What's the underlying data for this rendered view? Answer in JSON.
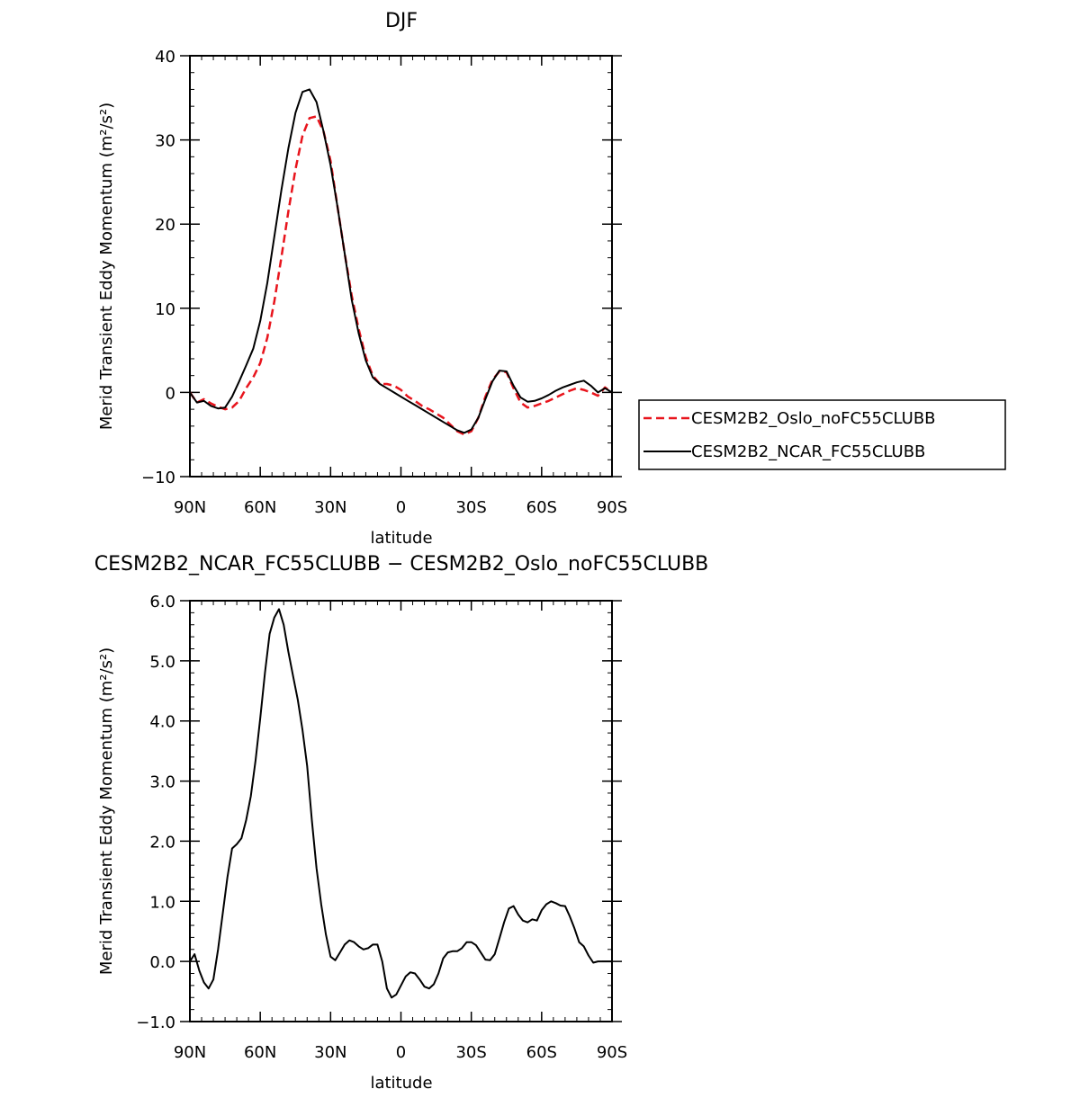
{
  "chart_data": [
    {
      "type": "line",
      "title": "DJF",
      "xlabel": "latitude",
      "ylabel": "Merid Transient Eddy Momentum (m²/s²)",
      "xlim": [
        90,
        -90
      ],
      "ylim": [
        -10,
        40
      ],
      "x_ticks": [
        {
          "value": 90,
          "label": "90N"
        },
        {
          "value": 60,
          "label": "60N"
        },
        {
          "value": 30,
          "label": "30N"
        },
        {
          "value": 0,
          "label": "0"
        },
        {
          "value": -30,
          "label": "30S"
        },
        {
          "value": -60,
          "label": "60S"
        },
        {
          "value": -90,
          "label": "90S"
        }
      ],
      "y_ticks": [
        {
          "value": -10,
          "label": "−10"
        },
        {
          "value": 0,
          "label": "0"
        },
        {
          "value": 10,
          "label": "10"
        },
        {
          "value": 20,
          "label": "20"
        },
        {
          "value": 30,
          "label": "30"
        },
        {
          "value": 40,
          "label": "40"
        }
      ],
      "legend_position": "right",
      "series": [
        {
          "name": "CESM2B2_Oslo_noFC55CLUBB",
          "color": "#e8141c",
          "dash": "dashed",
          "x": [
            90,
            87,
            84,
            81,
            78,
            75,
            72,
            69,
            66,
            63,
            60,
            57,
            54,
            51,
            48,
            45,
            42,
            39,
            36,
            33,
            30,
            27,
            24,
            21,
            18,
            15,
            12,
            9,
            6,
            3,
            0,
            -3,
            -6,
            -9,
            -12,
            -15,
            -18,
            -21,
            -24,
            -27,
            -30,
            -33,
            -36,
            -39,
            -42,
            -45,
            -48,
            -51,
            -54,
            -57,
            -60,
            -63,
            -66,
            -69,
            -72,
            -75,
            -78,
            -81,
            -84,
            -87,
            -90
          ],
          "y": [
            0.0,
            -1.2,
            -0.8,
            -1.3,
            -1.7,
            -2.0,
            -1.8,
            -1.0,
            0.5,
            1.8,
            3.5,
            6.5,
            10.8,
            16.0,
            21.5,
            26.5,
            30.5,
            32.6,
            32.8,
            31.0,
            27.5,
            22.0,
            16.5,
            11.5,
            7.5,
            4.2,
            2.0,
            1.0,
            1.0,
            0.8,
            0.3,
            -0.5,
            -1.0,
            -1.6,
            -2.0,
            -2.5,
            -3.0,
            -3.8,
            -4.6,
            -5.0,
            -4.6,
            -3.0,
            -0.5,
            1.5,
            2.5,
            2.4,
            0.5,
            -1.2,
            -1.8,
            -1.6,
            -1.3,
            -1.0,
            -0.6,
            -0.2,
            0.2,
            0.5,
            0.3,
            0.0,
            -0.4,
            0.6,
            0.0
          ]
        },
        {
          "name": "CESM2B2_NCAR_FC55CLUBB",
          "color": "#000000",
          "dash": "solid",
          "x": [
            90,
            87,
            84,
            81,
            78,
            75,
            72,
            69,
            66,
            63,
            60,
            57,
            54,
            51,
            48,
            45,
            42,
            39,
            36,
            33,
            30,
            27,
            24,
            21,
            18,
            15,
            12,
            9,
            6,
            3,
            0,
            -3,
            -6,
            -9,
            -12,
            -15,
            -18,
            -21,
            -24,
            -27,
            -30,
            -33,
            -36,
            -39,
            -42,
            -45,
            -48,
            -51,
            -54,
            -57,
            -60,
            -63,
            -66,
            -69,
            -72,
            -75,
            -78,
            -81,
            -84,
            -87,
            -90
          ],
          "y": [
            0.0,
            -1.2,
            -1.0,
            -1.6,
            -1.9,
            -1.8,
            -0.5,
            1.3,
            3.2,
            5.2,
            8.5,
            13.0,
            18.5,
            24.0,
            29.0,
            33.2,
            35.7,
            36.0,
            34.5,
            31.0,
            27.0,
            22.0,
            16.5,
            11.0,
            7.0,
            3.8,
            1.8,
            1.0,
            0.5,
            0.0,
            -0.5,
            -1.0,
            -1.5,
            -2.0,
            -2.5,
            -3.0,
            -3.5,
            -4.0,
            -4.5,
            -4.8,
            -4.4,
            -3.0,
            -0.8,
            1.3,
            2.6,
            2.5,
            0.8,
            -0.6,
            -1.1,
            -1.0,
            -0.7,
            -0.3,
            0.2,
            0.6,
            0.9,
            1.2,
            1.4,
            0.8,
            0.0,
            0.5,
            0.0
          ]
        }
      ]
    },
    {
      "type": "line",
      "title": "CESM2B2_NCAR_FC55CLUBB − CESM2B2_Oslo_noFC55CLUBB",
      "xlabel": "latitude",
      "ylabel": "Merid Transient Eddy Momentum (m²/s²)",
      "xlim": [
        90,
        -90
      ],
      "ylim": [
        -1.0,
        6.0
      ],
      "x_ticks": [
        {
          "value": 90,
          "label": "90N"
        },
        {
          "value": 60,
          "label": "60N"
        },
        {
          "value": 30,
          "label": "30N"
        },
        {
          "value": 0,
          "label": "0"
        },
        {
          "value": -30,
          "label": "30S"
        },
        {
          "value": -60,
          "label": "60S"
        },
        {
          "value": -90,
          "label": "90S"
        }
      ],
      "y_ticks": [
        {
          "value": -1.0,
          "label": "−1.0"
        },
        {
          "value": 0.0,
          "label": "0.0"
        },
        {
          "value": 1.0,
          "label": "1.0"
        },
        {
          "value": 2.0,
          "label": "2.0"
        },
        {
          "value": 3.0,
          "label": "3.0"
        },
        {
          "value": 4.0,
          "label": "4.0"
        },
        {
          "value": 5.0,
          "label": "5.0"
        },
        {
          "value": 6.0,
          "label": "6.0"
        }
      ],
      "series": [
        {
          "color": "#000000",
          "dash": "solid",
          "x": [
            90,
            88,
            86,
            84,
            82,
            80,
            78,
            76,
            74,
            72,
            70,
            68,
            66,
            64,
            62,
            60,
            58,
            56,
            54,
            52,
            50,
            48,
            46,
            44,
            42,
            40,
            38,
            36,
            34,
            32,
            30,
            28,
            26,
            24,
            22,
            20,
            18,
            16,
            14,
            12,
            10,
            8,
            6,
            4,
            2,
            0,
            -2,
            -4,
            -6,
            -8,
            -10,
            -12,
            -14,
            -16,
            -18,
            -20,
            -22,
            -24,
            -26,
            -28,
            -30,
            -32,
            -34,
            -36,
            -38,
            -40,
            -42,
            -44,
            -46,
            -48,
            -50,
            -52,
            -54,
            -56,
            -58,
            -60,
            -62,
            -64,
            -66,
            -68,
            -70,
            -72,
            -74,
            -76,
            -78,
            -80,
            -82,
            -84,
            -86,
            -88,
            -90
          ],
          "y": [
            0.0,
            0.12,
            -0.15,
            -0.35,
            -0.45,
            -0.3,
            0.2,
            0.8,
            1.4,
            1.88,
            1.95,
            2.05,
            2.35,
            2.75,
            3.35,
            4.05,
            4.8,
            5.45,
            5.72,
            5.86,
            5.6,
            5.15,
            4.75,
            4.35,
            3.85,
            3.25,
            2.35,
            1.55,
            0.95,
            0.45,
            0.08,
            0.02,
            0.15,
            0.28,
            0.35,
            0.32,
            0.25,
            0.2,
            0.22,
            0.28,
            0.28,
            0.0,
            -0.45,
            -0.6,
            -0.55,
            -0.4,
            -0.25,
            -0.18,
            -0.2,
            -0.3,
            -0.42,
            -0.45,
            -0.38,
            -0.2,
            0.05,
            0.15,
            0.17,
            0.17,
            0.22,
            0.32,
            0.32,
            0.27,
            0.15,
            0.03,
            0.02,
            0.12,
            0.38,
            0.65,
            0.88,
            0.92,
            0.78,
            0.68,
            0.65,
            0.7,
            0.68,
            0.85,
            0.95,
            1.0,
            0.97,
            0.93,
            0.92,
            0.75,
            0.55,
            0.32,
            0.25,
            0.1,
            -0.02,
            0.0,
            0.0,
            0.0,
            0.0
          ]
        }
      ]
    }
  ]
}
